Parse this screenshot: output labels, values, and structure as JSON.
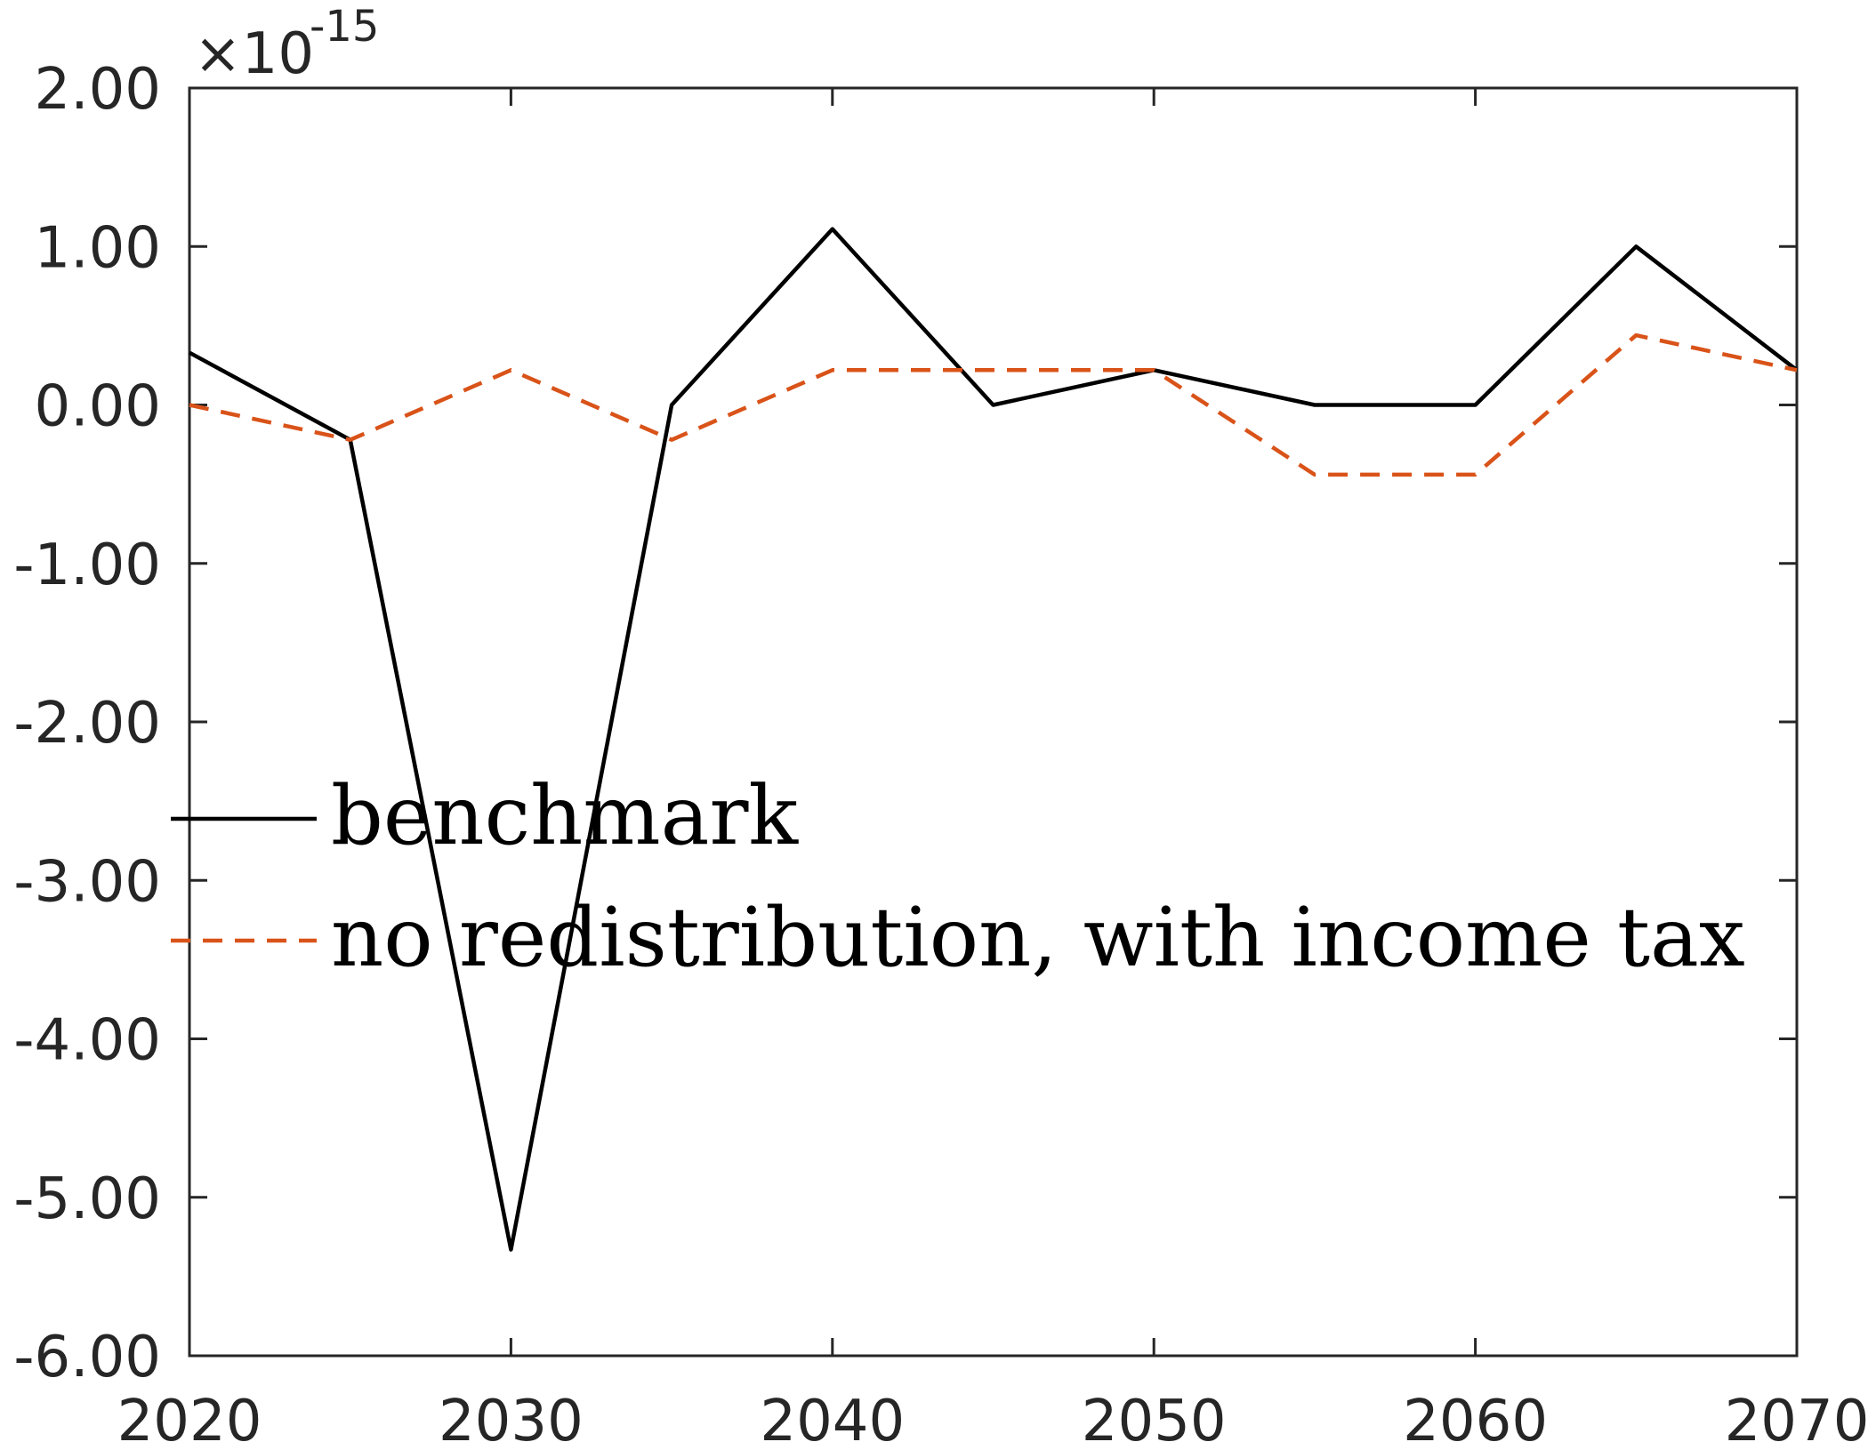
{
  "chart_data": {
    "type": "line",
    "title": "",
    "xlabel": "",
    "ylabel": "",
    "x": [
      2020,
      2025,
      2030,
      2035,
      2040,
      2045,
      2050,
      2055,
      2060,
      2065,
      2070
    ],
    "xlim": [
      2020,
      2070
    ],
    "ylim": [
      -6.0,
      2.0
    ],
    "y_multiplier": {
      "times": "×10",
      "exponent": "-15"
    },
    "xticks": [
      {
        "value": 2020,
        "label": "2020"
      },
      {
        "value": 2030,
        "label": "2030"
      },
      {
        "value": 2040,
        "label": "2040"
      },
      {
        "value": 2050,
        "label": "2050"
      },
      {
        "value": 2060,
        "label": "2060"
      },
      {
        "value": 2070,
        "label": "2070"
      }
    ],
    "yticks": [
      {
        "value": 2,
        "label": "2.00"
      },
      {
        "value": 1,
        "label": "1.00"
      },
      {
        "value": 0,
        "label": "0.00"
      },
      {
        "value": -1,
        "label": "-1.00"
      },
      {
        "value": -2,
        "label": "-2.00"
      },
      {
        "value": -3,
        "label": "-3.00"
      },
      {
        "value": -4,
        "label": "-4.00"
      },
      {
        "value": -5,
        "label": "-5.00"
      },
      {
        "value": -6,
        "label": "-6.00"
      }
    ],
    "grid": false,
    "legend_position": "center-left",
    "series": [
      {
        "name": "benchmark",
        "color": "#000000",
        "style": "solid",
        "values": [
          0.33,
          -0.22,
          -5.33,
          0.0,
          1.11,
          0.0,
          0.22,
          0.0,
          0.0,
          1.0,
          0.22
        ]
      },
      {
        "name": "no redistribution, with income tax",
        "color": "#D95319",
        "style": "dashed",
        "values": [
          0.0,
          -0.22,
          0.22,
          -0.22,
          0.22,
          0.22,
          0.22,
          -0.44,
          -0.44,
          0.44,
          0.22
        ]
      }
    ]
  }
}
